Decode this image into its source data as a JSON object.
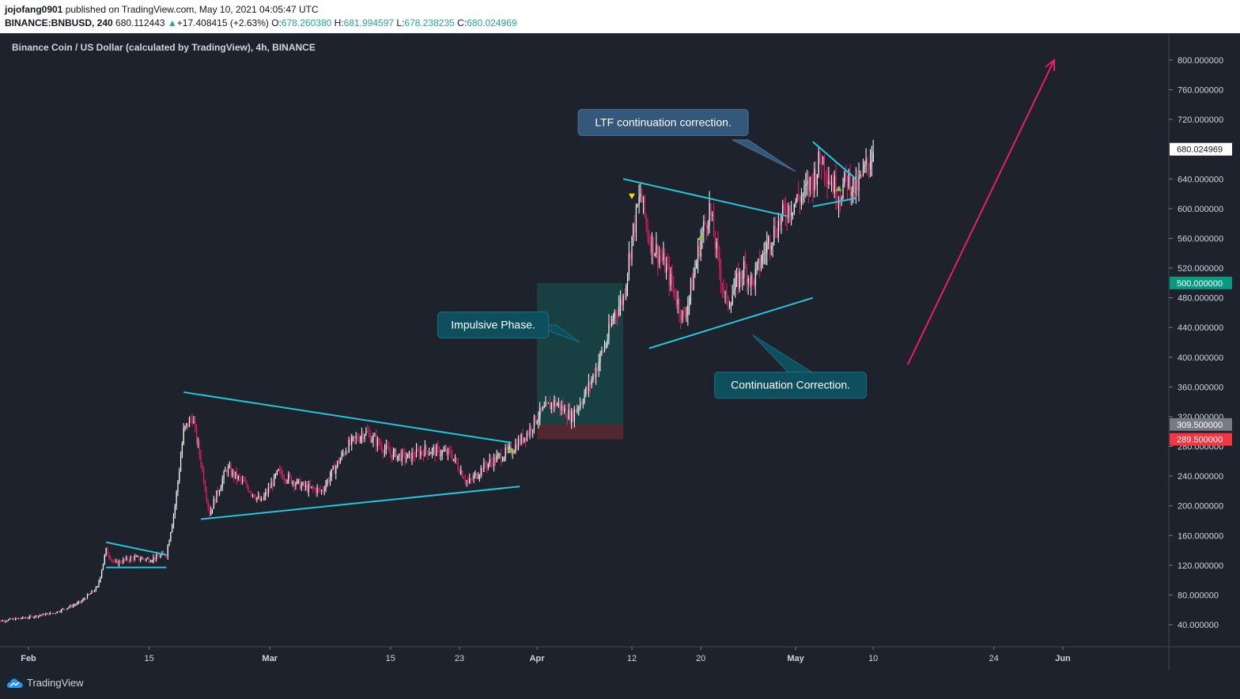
{
  "header": {
    "author": "jojofang0901",
    "published": "published on TradingView.com, May 10, 2021 04:05:47 UTC",
    "symbol": "BINANCE:BNBUSD, 240",
    "price": "680.112443",
    "change": "+17.408415 (+2.63%)",
    "o_label": "O:",
    "o_value": "678.260380",
    "h_label": "H:",
    "h_value": "681.994597",
    "l_label": "L:",
    "l_value": "678.238235",
    "c_label": "C:",
    "c_value": "680.024969"
  },
  "footer": {
    "brand": "TradingView"
  },
  "chart_data": {
    "type": "candlestick",
    "title": "Binance Coin / US Dollar (calculated by TradingView), 4h, BINANCE",
    "y_axis": {
      "min": 0,
      "max": 840,
      "ticks": [
        "800.000000",
        "760.000000",
        "720.000000",
        "640.000000",
        "600.000000",
        "560.000000",
        "520.000000",
        "480.000000",
        "440.000000",
        "400.000000",
        "360.000000",
        "320.000000",
        "280.000000",
        "240.000000",
        "200.000000",
        "160.000000",
        "120.000000",
        "80.000000",
        "40.000000"
      ],
      "tick_values": [
        800,
        760,
        720,
        640,
        600,
        560,
        520,
        480,
        440,
        400,
        360,
        320,
        280,
        240,
        200,
        160,
        120,
        80,
        40
      ]
    },
    "x_axis": {
      "labels": [
        "Feb",
        "15",
        "Mar",
        "15",
        "23",
        "Apr",
        "12",
        "20",
        "May",
        "10",
        "24",
        "Jun"
      ],
      "label_dates": [
        "2021-02-01",
        "2021-02-15",
        "2021-03-01",
        "2021-03-15",
        "2021-03-23",
        "2021-04-01",
        "2021-04-12",
        "2021-04-20",
        "2021-05-01",
        "2021-05-10",
        "2021-05-24",
        "2021-06-01"
      ]
    },
    "price_markers": [
      {
        "label": "680.024969",
        "value": 680.02,
        "color": "#ffffff",
        "text_color": "#131722"
      },
      {
        "label": "500.000000",
        "value": 500.0,
        "color": "#089981",
        "text_color": "#ffffff"
      },
      {
        "label": "309.500000",
        "value": 309.5,
        "color": "#787b86",
        "text_color": "#ffffff"
      },
      {
        "label": "289.500000",
        "value": 289.5,
        "color": "#f23645",
        "text_color": "#ffffff"
      }
    ],
    "price_path": [
      [
        "2021-01-28",
        44
      ],
      [
        "2021-02-01",
        50
      ],
      [
        "2021-02-04",
        56
      ],
      [
        "2021-02-07",
        70
      ],
      [
        "2021-02-09",
        90
      ],
      [
        "2021-02-10",
        140
      ],
      [
        "2021-02-11",
        122
      ],
      [
        "2021-02-13",
        130
      ],
      [
        "2021-02-15",
        128
      ],
      [
        "2021-02-17",
        135
      ],
      [
        "2021-02-18",
        200
      ],
      [
        "2021-02-19",
        300
      ],
      [
        "2021-02-20",
        320
      ],
      [
        "2021-02-21",
        260
      ],
      [
        "2021-02-22",
        190
      ],
      [
        "2021-02-24",
        250
      ],
      [
        "2021-02-26",
        230
      ],
      [
        "2021-02-28",
        205
      ],
      [
        "2021-03-02",
        245
      ],
      [
        "2021-03-05",
        225
      ],
      [
        "2021-03-07",
        220
      ],
      [
        "2021-03-09",
        260
      ],
      [
        "2021-03-10",
        280
      ],
      [
        "2021-03-12",
        300
      ],
      [
        "2021-03-15",
        270
      ],
      [
        "2021-03-17",
        265
      ],
      [
        "2021-03-19",
        275
      ],
      [
        "2021-03-22",
        270
      ],
      [
        "2021-03-24",
        230
      ],
      [
        "2021-03-26",
        255
      ],
      [
        "2021-03-29",
        275
      ],
      [
        "2021-03-31",
        300
      ],
      [
        "2021-04-01",
        320
      ],
      [
        "2021-04-03",
        340
      ],
      [
        "2021-04-05",
        320
      ],
      [
        "2021-04-07",
        360
      ],
      [
        "2021-04-09",
        420
      ],
      [
        "2021-04-10",
        460
      ],
      [
        "2021-04-11",
        480
      ],
      [
        "2021-04-12",
        560
      ],
      [
        "2021-04-13",
        620
      ],
      [
        "2021-04-14",
        560
      ],
      [
        "2021-04-16",
        520
      ],
      [
        "2021-04-18",
        450
      ],
      [
        "2021-04-19",
        500
      ],
      [
        "2021-04-20",
        560
      ],
      [
        "2021-04-21",
        600
      ],
      [
        "2021-04-22",
        530
      ],
      [
        "2021-04-23",
        470
      ],
      [
        "2021-04-25",
        520
      ],
      [
        "2021-04-26",
        500
      ],
      [
        "2021-04-28",
        560
      ],
      [
        "2021-04-30",
        600
      ],
      [
        "2021-05-02",
        620
      ],
      [
        "2021-05-03",
        640
      ],
      [
        "2021-05-04",
        670
      ],
      [
        "2021-05-05",
        640
      ],
      [
        "2021-05-06",
        620
      ],
      [
        "2021-05-07",
        640
      ],
      [
        "2021-05-08",
        625
      ],
      [
        "2021-05-09",
        650
      ],
      [
        "2021-05-10",
        680
      ]
    ],
    "annotations": [
      {
        "text": "Impulsive Phase.",
        "anchor_date": "2021-04-06",
        "anchor_value": 420
      },
      {
        "text": "LTF continuation correction.",
        "anchor_date": "2021-05-01",
        "anchor_value": 650
      },
      {
        "text": "Continuation Correction.",
        "anchor_date": "2021-04-26",
        "anchor_value": 430
      }
    ],
    "trendlines": [
      {
        "from": [
          "2021-02-10",
          151
        ],
        "to": [
          "2021-02-17",
          134
        ]
      },
      {
        "from": [
          "2021-02-10",
          117
        ],
        "to": [
          "2021-02-17",
          117
        ]
      },
      {
        "from": [
          "2021-02-19",
          353
        ],
        "to": [
          "2021-03-29",
          285
        ]
      },
      {
        "from": [
          "2021-02-21",
          182
        ],
        "to": [
          "2021-03-30",
          226
        ]
      },
      {
        "from": [
          "2021-04-11",
          640
        ],
        "to": [
          "2021-04-30",
          590
        ]
      },
      {
        "from": [
          "2021-04-14",
          412
        ],
        "to": [
          "2021-05-03",
          480
        ]
      },
      {
        "from": [
          "2021-05-03",
          690
        ],
        "to": [
          "2021-05-08",
          640
        ]
      },
      {
        "from": [
          "2021-05-03",
          603
        ],
        "to": [
          "2021-05-08",
          614
        ]
      }
    ],
    "projection_arrow": {
      "from": [
        "2021-05-14",
        390
      ],
      "to": [
        "2021-05-31",
        800
      ]
    },
    "range_box": {
      "from_date": "2021-04-01",
      "to_date": "2021-04-11",
      "top": 500,
      "bottom": 289.5,
      "split": 309.5
    },
    "arrow_markers": [
      {
        "date": "2021-03-29",
        "value": 276,
        "dir": "up",
        "color": "#8bc34a"
      },
      {
        "date": "2021-04-12",
        "value": 617,
        "dir": "down",
        "color": "#ffd600"
      },
      {
        "date": "2021-04-20",
        "value": 562,
        "dir": "up",
        "color": "#8bc34a"
      },
      {
        "date": "2021-05-06",
        "value": 628,
        "dir": "up",
        "color": "#8bc34a"
      }
    ]
  }
}
